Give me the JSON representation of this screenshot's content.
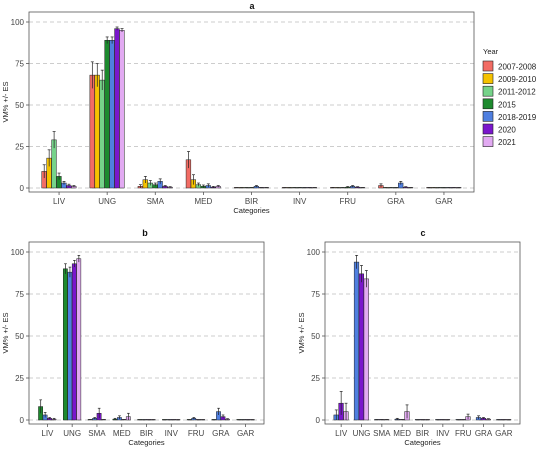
{
  "chart_data": [
    {
      "panel": "a",
      "type": "bar",
      "title": "a",
      "xlabel": "Categories",
      "ylabel": "VM% +/- ES",
      "ylim": [
        0,
        100
      ],
      "yticks": [
        0,
        25,
        50,
        75,
        100
      ],
      "grid": "horizontal dashed",
      "legend": "right",
      "categories": [
        "LIV",
        "UNG",
        "SMA",
        "MED",
        "BIR",
        "INV",
        "FRU",
        "GRA",
        "GAR"
      ],
      "series": [
        {
          "name": "2007-2008",
          "color": "#f26c64",
          "values": [
            10,
            68,
            1,
            17,
            0,
            0,
            0,
            1.5,
            0
          ],
          "errors": [
            4,
            8,
            1,
            5,
            0.2,
            0.2,
            0.3,
            1,
            0.2
          ]
        },
        {
          "name": "2009-2010",
          "color": "#f5c200",
          "values": [
            18,
            68,
            5,
            5,
            0,
            0,
            0,
            0,
            0
          ],
          "errors": [
            5,
            7,
            2,
            3,
            0.2,
            0.2,
            0.2,
            0.2,
            0.2
          ]
        },
        {
          "name": "2011-2012",
          "color": "#76d38a",
          "values": [
            29,
            65,
            3,
            2,
            0,
            0,
            0,
            0,
            0
          ],
          "errors": [
            5,
            6,
            1.5,
            1,
            0.2,
            0.2,
            0.2,
            0.2,
            0.2
          ]
        },
        {
          "name": "2015",
          "color": "#1d8a2e",
          "values": [
            7,
            89,
            2,
            1,
            0,
            0,
            0.5,
            0,
            0
          ],
          "errors": [
            2,
            2,
            1,
            0.8,
            0.2,
            0.2,
            0.4,
            0.2,
            0.2
          ]
        },
        {
          "name": "2018-2019",
          "color": "#4f7fe0",
          "values": [
            3,
            89,
            4,
            1.5,
            1,
            0,
            1,
            3,
            0
          ],
          "errors": [
            1,
            2,
            1.5,
            1,
            0.5,
            0.2,
            0.5,
            1,
            0.2
          ]
        },
        {
          "name": "2020",
          "color": "#7a16cc",
          "values": [
            1.5,
            96,
            1,
            0.5,
            0,
            0,
            0.5,
            0.5,
            0
          ],
          "errors": [
            0.8,
            1,
            0.5,
            0.5,
            0.2,
            0.2,
            0.3,
            0.3,
            0.2
          ]
        },
        {
          "name": "2021",
          "color": "#e2aaf2",
          "values": [
            1,
            95,
            0.5,
            1,
            0,
            0,
            0,
            0,
            0
          ],
          "errors": [
            0.5,
            1,
            0.3,
            0.5,
            0.2,
            0.2,
            0.2,
            0.2,
            0.2
          ]
        }
      ]
    },
    {
      "panel": "b",
      "type": "bar",
      "title": "b",
      "xlabel": "Categories",
      "ylabel": "VM% +/- ES",
      "ylim": [
        0,
        100
      ],
      "yticks": [
        0,
        25,
        50,
        75,
        100
      ],
      "grid": "horizontal dashed",
      "categories": [
        "LIV",
        "UNG",
        "SMA",
        "MED",
        "BIR",
        "INV",
        "FRU",
        "GRA",
        "GAR"
      ],
      "series": [
        {
          "name": "2015",
          "color": "#1d8a2e",
          "values": [
            8,
            90,
            0,
            0.5,
            0,
            0,
            0,
            0,
            0
          ],
          "errors": [
            4,
            3,
            0.2,
            0.5,
            0.1,
            0.1,
            0.1,
            0.1,
            0.1
          ]
        },
        {
          "name": "2018-2019",
          "color": "#4f7fe0",
          "values": [
            3,
            88,
            1,
            1.5,
            0,
            0,
            1,
            5,
            0
          ],
          "errors": [
            1.5,
            3,
            0.5,
            1,
            0.1,
            0.1,
            0.5,
            2,
            0.1
          ]
        },
        {
          "name": "2020",
          "color": "#7a16cc",
          "values": [
            1,
            93,
            4,
            0,
            0,
            0,
            0,
            2,
            0
          ],
          "errors": [
            0.5,
            2,
            3,
            0.2,
            0.1,
            0.1,
            0.1,
            1,
            0.1
          ]
        },
        {
          "name": "2021",
          "color": "#e2aaf2",
          "values": [
            0.5,
            96,
            0,
            2,
            0,
            0,
            0,
            0.5,
            0
          ],
          "errors": [
            0.5,
            2,
            0.2,
            2,
            0.1,
            0.1,
            0.1,
            0.3,
            0.1
          ]
        }
      ]
    },
    {
      "panel": "c",
      "type": "bar",
      "title": "c",
      "xlabel": "Categories",
      "ylabel": "VM% +/- ES",
      "ylim": [
        0,
        100
      ],
      "yticks": [
        0,
        25,
        50,
        75,
        100
      ],
      "grid": "horizontal dashed",
      "categories": [
        "LIV",
        "UNG",
        "SMA",
        "MED",
        "BIR",
        "INV",
        "FRU",
        "GRA",
        "GAR"
      ],
      "series": [
        {
          "name": "2018-2019",
          "color": "#4f7fe0",
          "values": [
            3,
            94,
            0,
            0.5,
            0,
            0,
            0,
            1.5,
            0
          ],
          "errors": [
            3,
            4,
            0.2,
            0.5,
            0.1,
            0.1,
            0.1,
            1,
            0.1
          ]
        },
        {
          "name": "2020",
          "color": "#7a16cc",
          "values": [
            10,
            87,
            0,
            0,
            0,
            0,
            0,
            1,
            0
          ],
          "errors": [
            7,
            5,
            0.2,
            0.2,
            0.1,
            0.1,
            0.1,
            0.5,
            0.1
          ]
        },
        {
          "name": "2021",
          "color": "#e2aaf2",
          "values": [
            5,
            84,
            0,
            5,
            0,
            0,
            2,
            0.5,
            0
          ],
          "errors": [
            5,
            5,
            0.2,
            4,
            0.1,
            0.1,
            1.5,
            0.3,
            0.1
          ]
        }
      ]
    }
  ],
  "legend": {
    "title": "Year"
  }
}
